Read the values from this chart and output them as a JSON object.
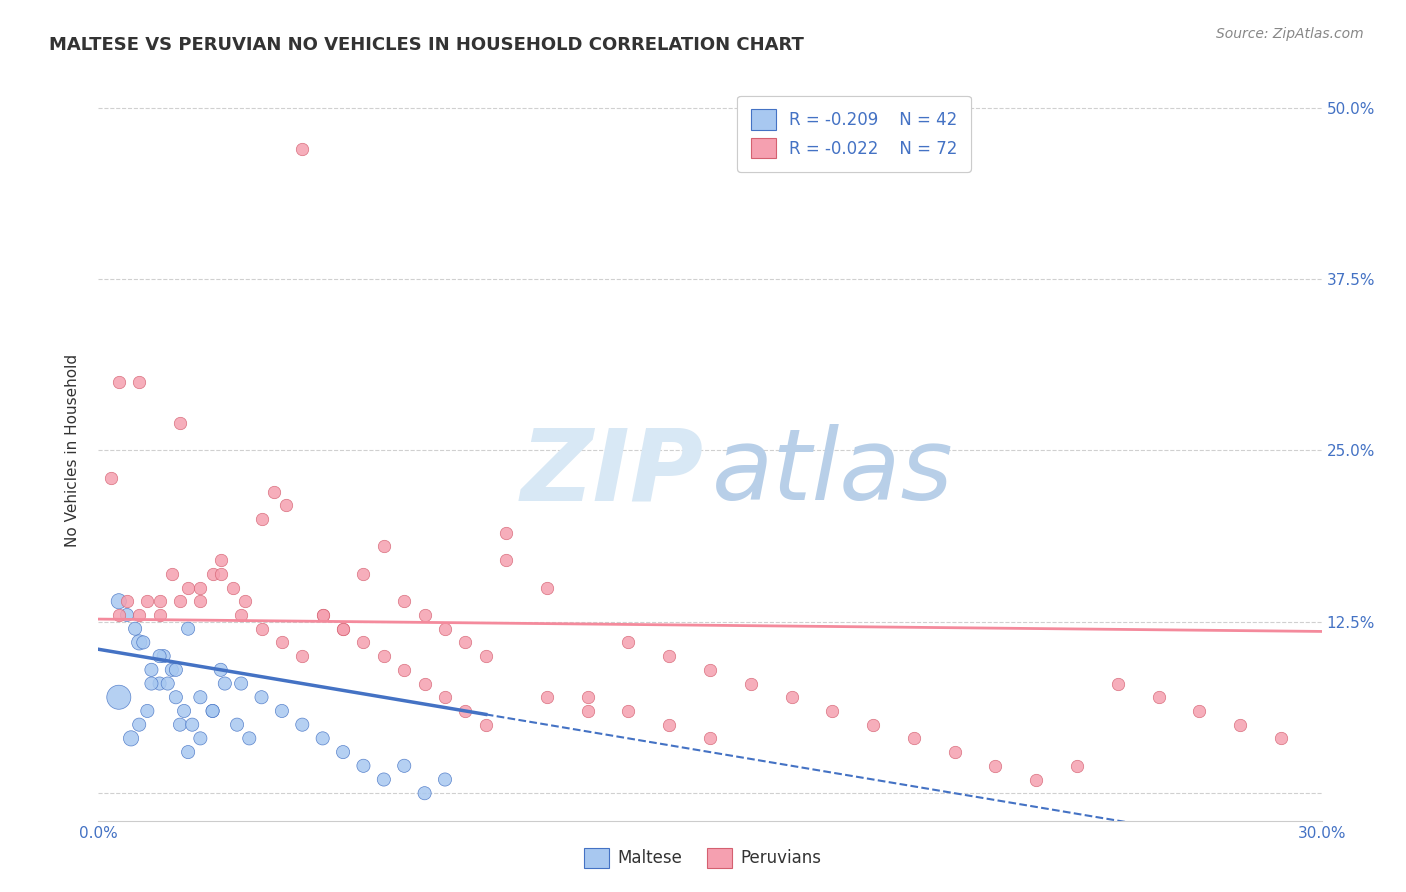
{
  "title": "MALTESE VS PERUVIAN NO VEHICLES IN HOUSEHOLD CORRELATION CHART",
  "source": "Source: ZipAtlas.com",
  "ylabel": "No Vehicles in Household",
  "xlim": [
    0.0,
    0.3
  ],
  "ylim": [
    -0.02,
    0.52
  ],
  "ytick_values": [
    0.0,
    0.125,
    0.25,
    0.375,
    0.5
  ],
  "maltese_R": "-0.209",
  "maltese_N": "42",
  "peruvian_R": "-0.022",
  "peruvian_N": "72",
  "maltese_color": "#a8c8f0",
  "peruvian_color": "#f5a0b0",
  "trend_maltese_color": "#4472c4",
  "trend_peruvian_color": "#f48a9c",
  "grid_color": "#d0d0d0",
  "watermark_zip_color": "#d8e8f5",
  "watermark_atlas_color": "#b8cfe8",
  "maltese_scatter_x": [
    0.005,
    0.008,
    0.01,
    0.012,
    0.015,
    0.018,
    0.02,
    0.022,
    0.025,
    0.028,
    0.01,
    0.013,
    0.016,
    0.019,
    0.022,
    0.025,
    0.028,
    0.031,
    0.034,
    0.037,
    0.005,
    0.007,
    0.009,
    0.011,
    0.013,
    0.015,
    0.017,
    0.019,
    0.021,
    0.023,
    0.03,
    0.035,
    0.04,
    0.045,
    0.05,
    0.055,
    0.06,
    0.065,
    0.07,
    0.075,
    0.08,
    0.085
  ],
  "maltese_scatter_y": [
    0.07,
    0.04,
    0.05,
    0.06,
    0.08,
    0.09,
    0.05,
    0.03,
    0.04,
    0.06,
    0.11,
    0.08,
    0.1,
    0.09,
    0.12,
    0.07,
    0.06,
    0.08,
    0.05,
    0.04,
    0.14,
    0.13,
    0.12,
    0.11,
    0.09,
    0.1,
    0.08,
    0.07,
    0.06,
    0.05,
    0.09,
    0.08,
    0.07,
    0.06,
    0.05,
    0.04,
    0.03,
    0.02,
    0.01,
    0.02,
    0.0,
    0.01
  ],
  "maltese_scatter_size": [
    200,
    80,
    60,
    60,
    60,
    60,
    60,
    60,
    60,
    60,
    80,
    60,
    60,
    60,
    60,
    60,
    60,
    60,
    60,
    60,
    80,
    60,
    60,
    60,
    60,
    60,
    60,
    60,
    60,
    60,
    60,
    60,
    60,
    60,
    60,
    60,
    60,
    60,
    60,
    60,
    60,
    60
  ],
  "peruvian_scatter_x": [
    0.003,
    0.005,
    0.007,
    0.01,
    0.012,
    0.015,
    0.018,
    0.02,
    0.022,
    0.025,
    0.028,
    0.03,
    0.033,
    0.036,
    0.04,
    0.043,
    0.046,
    0.05,
    0.055,
    0.06,
    0.065,
    0.07,
    0.075,
    0.08,
    0.085,
    0.09,
    0.095,
    0.1,
    0.11,
    0.12,
    0.13,
    0.14,
    0.15,
    0.16,
    0.17,
    0.18,
    0.19,
    0.2,
    0.21,
    0.22,
    0.23,
    0.24,
    0.25,
    0.26,
    0.27,
    0.28,
    0.29,
    0.005,
    0.01,
    0.015,
    0.02,
    0.025,
    0.03,
    0.035,
    0.04,
    0.045,
    0.05,
    0.055,
    0.06,
    0.065,
    0.07,
    0.075,
    0.08,
    0.085,
    0.09,
    0.095,
    0.1,
    0.11,
    0.12,
    0.13,
    0.14,
    0.15
  ],
  "peruvian_scatter_y": [
    0.23,
    0.13,
    0.14,
    0.3,
    0.14,
    0.13,
    0.16,
    0.27,
    0.15,
    0.14,
    0.16,
    0.17,
    0.15,
    0.14,
    0.2,
    0.22,
    0.21,
    0.47,
    0.13,
    0.12,
    0.16,
    0.18,
    0.14,
    0.13,
    0.12,
    0.11,
    0.1,
    0.19,
    0.07,
    0.06,
    0.11,
    0.1,
    0.09,
    0.08,
    0.07,
    0.06,
    0.05,
    0.04,
    0.03,
    0.02,
    0.01,
    0.02,
    0.08,
    0.07,
    0.06,
    0.05,
    0.04,
    0.3,
    0.13,
    0.14,
    0.14,
    0.15,
    0.16,
    0.13,
    0.12,
    0.11,
    0.1,
    0.13,
    0.12,
    0.11,
    0.1,
    0.09,
    0.08,
    0.07,
    0.06,
    0.05,
    0.17,
    0.15,
    0.07,
    0.06,
    0.05,
    0.04
  ]
}
